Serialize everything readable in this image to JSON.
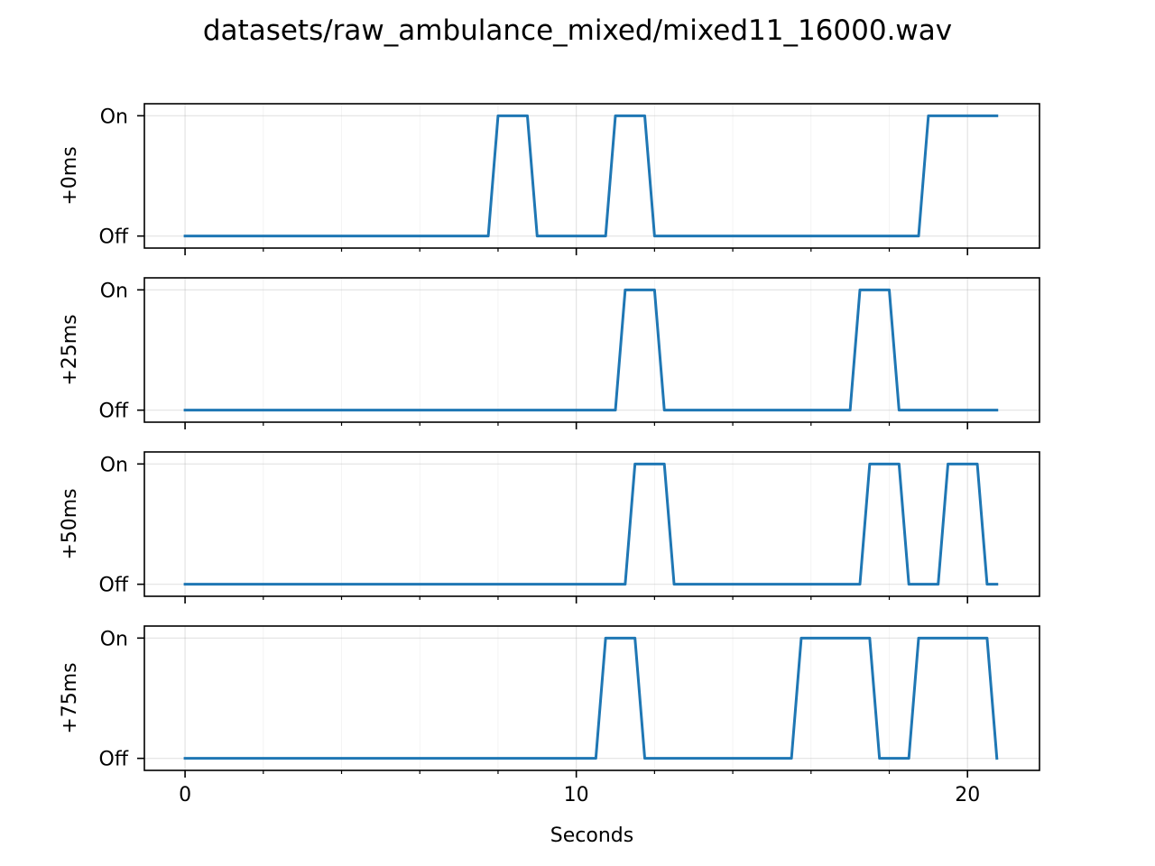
{
  "figure": {
    "title": "datasets/raw_ambulance_mixed/mixed11_16000.wav",
    "xlabel": "Seconds",
    "line_color": "#1f77b4"
  },
  "chart_data": [
    {
      "type": "line",
      "title": "",
      "xlabel": "",
      "ylabel": "+0ms",
      "xlim": [
        -1.04,
        21.84
      ],
      "xticks": [
        0,
        10,
        20
      ],
      "xtick_labels": [
        "",
        "",
        ""
      ],
      "yticks": [
        0,
        1
      ],
      "ytick_labels": [
        "Off",
        "On"
      ],
      "ylim": [
        -0.1,
        1.1
      ],
      "grid": true,
      "series": [
        {
          "x": [
            0,
            7.75,
            8.0,
            8.75,
            9.0,
            10.75,
            11.0,
            11.75,
            12.0,
            18.75,
            19.0,
            20.75
          ],
          "y": [
            0,
            0,
            1,
            1,
            0,
            0,
            1,
            1,
            0,
            0,
            1,
            1
          ]
        }
      ]
    },
    {
      "type": "line",
      "title": "",
      "xlabel": "",
      "ylabel": "+25ms",
      "xlim": [
        -1.04,
        21.84
      ],
      "xticks": [
        0,
        10,
        20
      ],
      "xtick_labels": [
        "",
        "",
        ""
      ],
      "yticks": [
        0,
        1
      ],
      "ytick_labels": [
        "Off",
        "On"
      ],
      "ylim": [
        -0.1,
        1.1
      ],
      "grid": true,
      "series": [
        {
          "x": [
            0,
            11.0,
            11.25,
            12.0,
            12.25,
            17.0,
            17.25,
            18.0,
            18.25,
            20.75
          ],
          "y": [
            0,
            0,
            1,
            1,
            0,
            0,
            1,
            1,
            0,
            0
          ]
        }
      ]
    },
    {
      "type": "line",
      "title": "",
      "xlabel": "",
      "ylabel": "+50ms",
      "xlim": [
        -1.04,
        21.84
      ],
      "xticks": [
        0,
        10,
        20
      ],
      "xtick_labels": [
        "",
        "",
        ""
      ],
      "yticks": [
        0,
        1
      ],
      "ytick_labels": [
        "Off",
        "On"
      ],
      "ylim": [
        -0.1,
        1.1
      ],
      "grid": true,
      "series": [
        {
          "x": [
            0,
            11.25,
            11.5,
            12.25,
            12.5,
            17.25,
            17.5,
            18.25,
            18.5,
            19.25,
            19.5,
            20.25,
            20.5,
            20.75
          ],
          "y": [
            0,
            0,
            1,
            1,
            0,
            0,
            1,
            1,
            0,
            0,
            1,
            1,
            0,
            0
          ]
        }
      ]
    },
    {
      "type": "line",
      "title": "",
      "xlabel": "Seconds",
      "ylabel": "+75ms",
      "xlim": [
        -1.04,
        21.84
      ],
      "xticks": [
        0,
        10,
        20
      ],
      "xtick_labels": [
        "0",
        "10",
        "20"
      ],
      "yticks": [
        0,
        1
      ],
      "ytick_labels": [
        "Off",
        "On"
      ],
      "ylim": [
        -0.1,
        1.1
      ],
      "grid": true,
      "series": [
        {
          "x": [
            0,
            10.5,
            10.75,
            11.5,
            11.75,
            15.5,
            15.75,
            17.5,
            17.75,
            18.5,
            18.75,
            20.5,
            20.75
          ],
          "y": [
            0,
            0,
            1,
            1,
            0,
            0,
            1,
            1,
            0,
            0,
            1,
            1,
            0
          ]
        }
      ]
    }
  ]
}
